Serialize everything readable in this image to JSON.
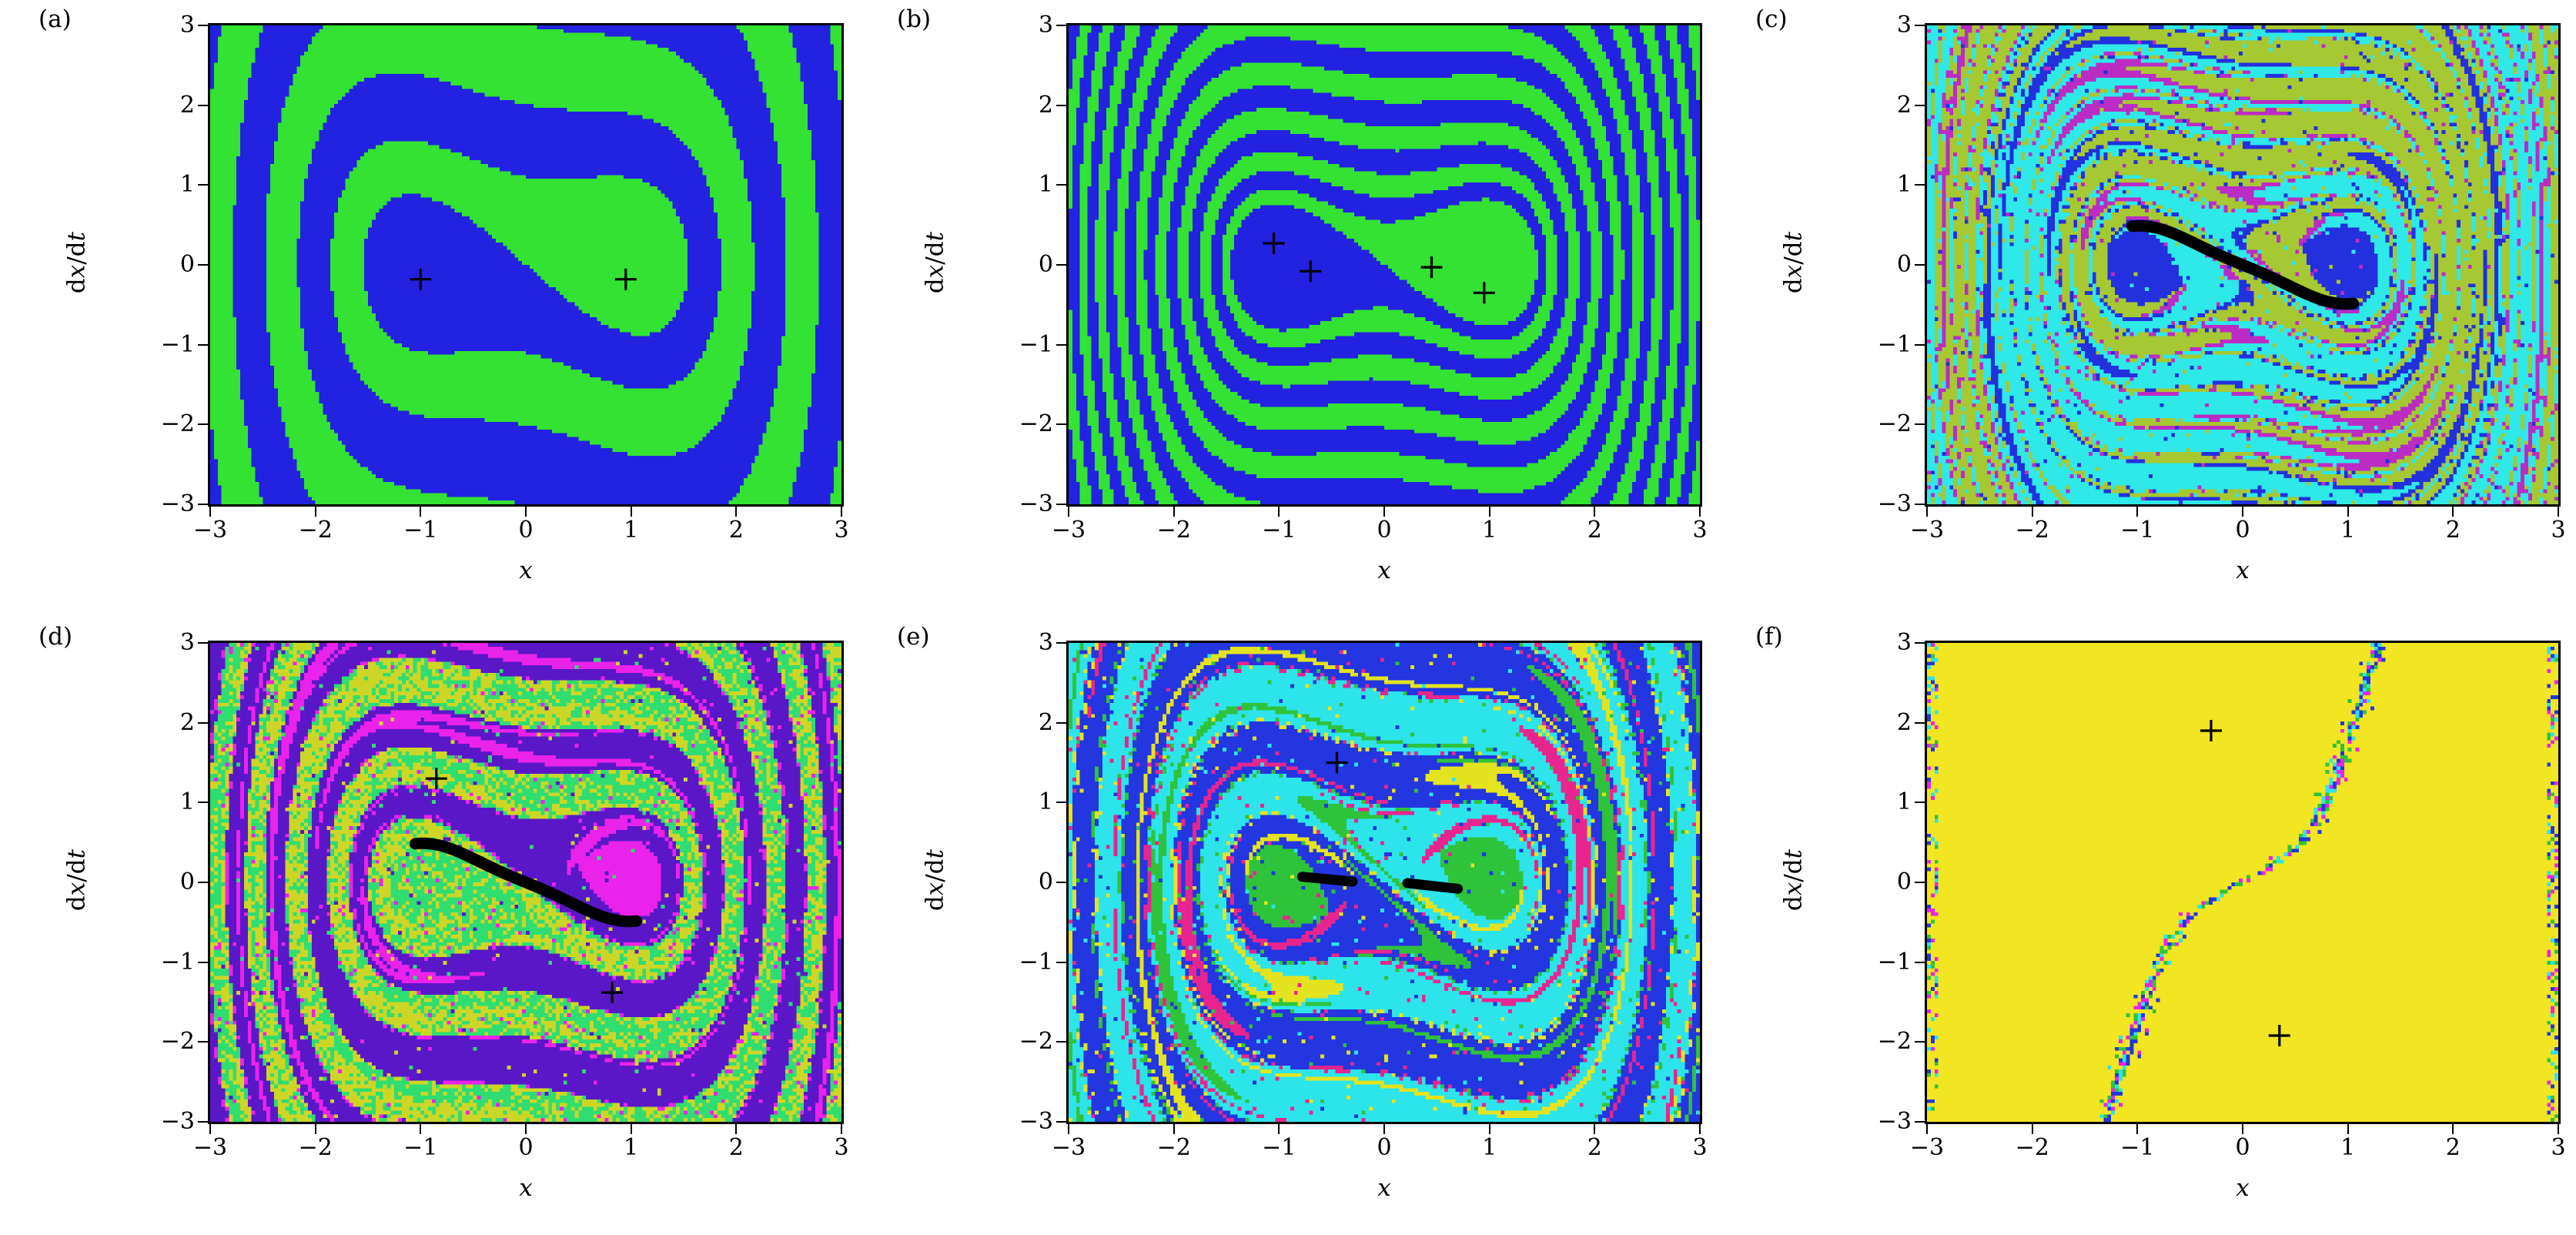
{
  "figure": {
    "background": "#ffffff",
    "axis_color": "#000000",
    "xlabel": "x",
    "ylabel": "dx/dt",
    "ylabel_parts": [
      {
        "text": "d",
        "italic": false
      },
      {
        "text": "x",
        "italic": true
      },
      {
        "text": "/",
        "italic": false
      },
      {
        "text": "d",
        "italic": false
      },
      {
        "text": "t",
        "italic": true
      }
    ],
    "xticks": [
      "−3",
      "−2",
      "−1",
      "0",
      "1",
      "2",
      "3"
    ],
    "yticks": [
      "3",
      "2",
      "1",
      "0",
      "−1",
      "−2",
      "−3"
    ]
  },
  "chart_data": {
    "type": "heatmap",
    "grid": [
      2,
      3
    ],
    "x_range": [
      -3,
      3
    ],
    "y_range": [
      -3,
      3
    ],
    "x_label": "x",
    "y_label": "dx/dt",
    "panels": [
      {
        "label": "(a)",
        "palette": [
          "#2222e0",
          "#33e233"
        ],
        "markers": [
          [
            -1.0,
            -0.18
          ],
          [
            0.95,
            -0.18
          ]
        ],
        "attractor_curve": null,
        "render": {
          "mode": "two",
          "delta": 0.25,
          "tmax": 28,
          "bandT": 2.2,
          "noise": 0,
          "seed": 11
        }
      },
      {
        "label": "(b)",
        "palette": [
          "#2222e0",
          "#33e233"
        ],
        "markers": [
          [
            -1.05,
            0.27
          ],
          [
            -0.7,
            -0.08
          ],
          [
            0.45,
            -0.03
          ],
          [
            0.95,
            -0.35
          ]
        ],
        "attractor_curve": null,
        "render": {
          "mode": "two",
          "delta": 0.085,
          "tmax": 40,
          "bandT": 2.2,
          "noise": 0,
          "seed": 22
        }
      },
      {
        "label": "(c)",
        "palette": [
          "#2fe8e8",
          "#a6c832",
          "#2230dd",
          "#bb2cc4"
        ],
        "markers": [],
        "attractor_curve": {
          "type": "s",
          "xmin": -1.05,
          "xmax": 1.05,
          "amp": 0.23
        },
        "render": {
          "mode": "stripes4",
          "delta": 0.12,
          "tmax": 34,
          "bandT": 2.2,
          "noise": 0.05,
          "seed": 33
        }
      },
      {
        "label": "(d)",
        "palette": [
          "#30dd70",
          "#cdd626",
          "#5a17c8",
          "#ea23ea"
        ],
        "markers": [
          [
            -0.85,
            1.3
          ],
          [
            0.82,
            -1.38
          ]
        ],
        "attractor_curve": {
          "type": "s",
          "xmin": -1.05,
          "xmax": 1.05,
          "amp": 0.23
        },
        "render": {
          "mode": "lobes4",
          "delta": 0.16,
          "tmax": 34,
          "bandT": 2.2,
          "noise": 0.03,
          "seed": 44
        }
      },
      {
        "label": "(e)",
        "palette": [
          "#2336e0",
          "#2ce4ea",
          "#2fc33c",
          "#e3e320",
          "#e8258f"
        ],
        "markers": [
          [
            -0.45,
            1.5
          ]
        ],
        "attractor_curve": {
          "type": "dashes",
          "segments": [
            [
              [
                -0.78,
                0.07
              ],
              [
                -0.3,
                0.01
              ]
            ],
            [
              [
                0.22,
                -0.01
              ],
              [
                0.7,
                -0.08
              ]
            ]
          ]
        },
        "render": {
          "mode": "fil5",
          "delta": 0.2,
          "tmax": 30,
          "bandT": 2.2,
          "noise": 0.05,
          "seed": 55
        }
      },
      {
        "label": "(f)",
        "palette": [
          "#f2e521",
          "#2ce4ea",
          "#2336e0",
          "#ea23ea",
          "#2fc33c"
        ],
        "markers": [
          [
            -0.3,
            1.9
          ],
          [
            0.35,
            -1.92
          ]
        ],
        "attractor_curve": null,
        "render": {
          "mode": "flat-curve",
          "seed": 66
        }
      }
    ]
  }
}
